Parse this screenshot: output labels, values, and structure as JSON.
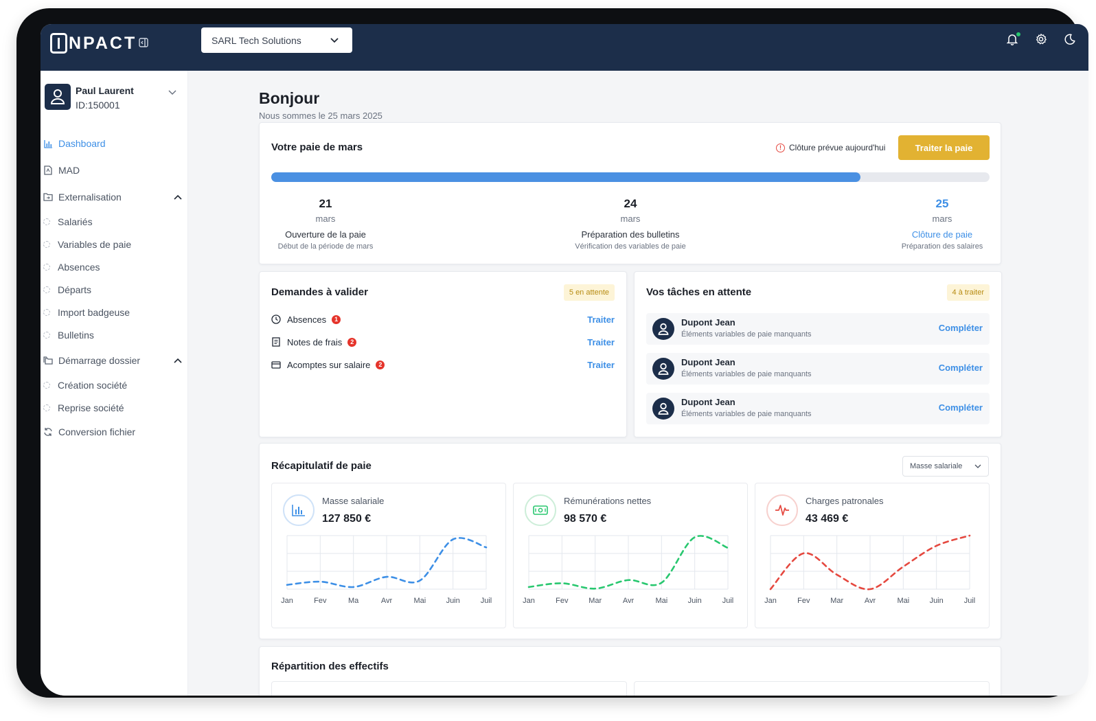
{
  "brand": "INPACT",
  "company_selector": {
    "value": "SARL Tech Solutions"
  },
  "user": {
    "name": "Paul Laurent",
    "id": "ID:150001"
  },
  "nav": {
    "dashboard": "Dashboard",
    "mad": "MAD",
    "externalisation": "Externalisation",
    "ext_items": [
      "Salariés",
      "Variables de paie",
      "Absences",
      "Départs",
      "Import badgeuse",
      "Bulletins"
    ],
    "demarrage": "Démarrage dossier",
    "dem_items": [
      "Création société",
      "Reprise société"
    ],
    "conversion": "Conversion fichier"
  },
  "greeting": {
    "title": "Bonjour",
    "date": "Nous sommes le 25 mars 2025"
  },
  "payroll": {
    "title": "Votre paie de mars",
    "closure_notice": "Clôture prévue aujourd'hui",
    "process_button": "Traiter la paie",
    "progress": 0.82,
    "steps": [
      {
        "day": "21",
        "month": "mars",
        "label": "Ouverture de la paie",
        "sub": "Début de la période de mars"
      },
      {
        "day": "24",
        "month": "mars",
        "label": "Préparation des bulletins",
        "sub": "Vérification des variables de paie"
      },
      {
        "day": "25",
        "month": "mars",
        "label": "Clôture de paie",
        "sub": "Préparation des salaires"
      }
    ]
  },
  "requests": {
    "title": "Demandes à valider",
    "badge": "5 en attente",
    "items": [
      {
        "label": "Absences",
        "count": "1",
        "action": "Traiter"
      },
      {
        "label": "Notes de frais",
        "count": "2",
        "action": "Traiter"
      },
      {
        "label": "Acomptes sur salaire",
        "count": "2",
        "action": "Traiter"
      }
    ]
  },
  "tasks": {
    "title": "Vos tâches en attente",
    "badge": "4 à traiter",
    "items": [
      {
        "name": "Dupont Jean",
        "desc": "Éléments variables de paie manquants",
        "action": "Compléter"
      },
      {
        "name": "Dupont Jean",
        "desc": "Éléments variables de paie manquants",
        "action": "Compléter"
      },
      {
        "name": "Dupont Jean",
        "desc": "Éléments variables de paie manquants",
        "action": "Compléter"
      }
    ]
  },
  "recap": {
    "title": "Récapitulatif de paie",
    "select": "Masse salariale",
    "cards": [
      {
        "label": "Masse salariale",
        "value": "127 850 €",
        "color": "#3d8fe6"
      },
      {
        "label": "Rémunérations nettes",
        "value": "98 570 €",
        "color": "#28c76f"
      },
      {
        "label": "Charges patronales",
        "value": "43 469 €",
        "color": "#e5483f"
      }
    ]
  },
  "chart_data": [
    {
      "type": "line",
      "categories": [
        "Jan",
        "Fev",
        "Ma",
        "Avr",
        "Mai",
        "Juin",
        "Juil"
      ],
      "series": [
        {
          "values": [
            0.08,
            0.14,
            0.04,
            0.23,
            0.16,
            0.93,
            0.78
          ]
        }
      ],
      "ylim": [
        0,
        1
      ]
    },
    {
      "type": "line",
      "categories": [
        "Jan",
        "Fev",
        "Mar",
        "Avr",
        "Mai",
        "Juin",
        "Juil"
      ],
      "series": [
        {
          "values": [
            0.04,
            0.11,
            0.01,
            0.17,
            0.12,
            0.97,
            0.77
          ]
        }
      ],
      "ylim": [
        0,
        1
      ]
    },
    {
      "type": "line",
      "categories": [
        "Jan",
        "Fev",
        "Mar",
        "Avr",
        "Mai",
        "Juin",
        "Juil"
      ],
      "series": [
        {
          "values": [
            0.0,
            0.67,
            0.27,
            0.0,
            0.42,
            0.81,
            1.0
          ]
        }
      ],
      "ylim": [
        0,
        1
      ]
    }
  ],
  "repartition": {
    "title": "Répartition des effectifs"
  }
}
